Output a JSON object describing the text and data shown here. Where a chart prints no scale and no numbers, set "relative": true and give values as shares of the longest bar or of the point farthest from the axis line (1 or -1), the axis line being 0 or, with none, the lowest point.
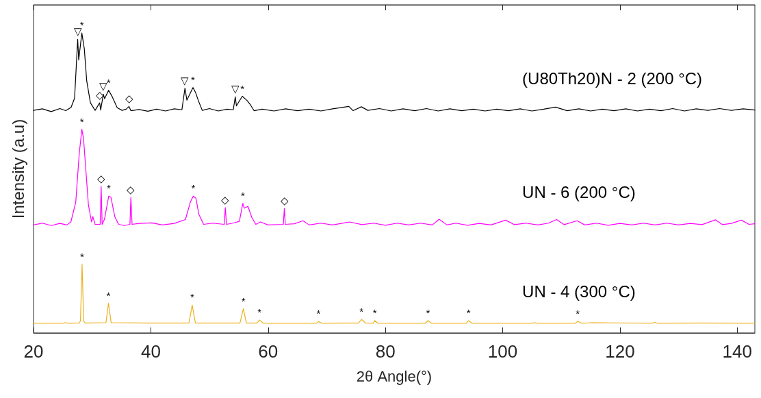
{
  "chart_data": {
    "type": "line",
    "relative": true,
    "xlabel": "2θ Angle(°)",
    "ylabel": "Intensity (a.u)",
    "xlim": [
      20,
      143
    ],
    "xticks": [
      20,
      40,
      60,
      80,
      100,
      120,
      140
    ],
    "series": [
      {
        "name": "(U80Th20)N - 2 (200 °C)",
        "color": "#000000",
        "x": [
          20,
          21.5,
          23,
          24.5,
          25.5,
          26.4,
          27.0,
          27.53,
          27.7,
          28.24,
          28.66,
          29.07,
          29.7,
          30.5,
          31.28,
          31.45,
          31.9,
          32.12,
          32.8,
          33.43,
          34.27,
          35.1,
          35.8,
          36.28,
          36.6,
          38,
          39.5,
          41,
          42.5,
          44,
          45.3,
          45.82,
          46.15,
          47.19,
          47.6,
          48.1,
          48.77,
          50,
          51.5,
          53,
          54.06,
          54.4,
          54.6,
          55.6,
          56.4,
          57.0,
          57.6,
          59,
          61,
          63,
          65,
          67,
          69,
          71,
          73.77,
          74.5,
          75.9,
          77,
          79,
          81,
          83,
          85,
          87,
          89,
          91,
          93,
          95,
          97,
          99,
          101,
          103,
          105,
          107,
          109,
          111,
          113,
          115,
          117,
          119,
          121,
          123,
          125,
          127,
          129,
          131,
          133,
          135,
          137,
          139,
          141,
          143
        ],
        "values": [
          0.742,
          0.747,
          0.738,
          0.748,
          0.741,
          0.752,
          0.783,
          0.979,
          0.91,
          1.0,
          0.947,
          0.84,
          0.767,
          0.742,
          0.767,
          0.743,
          0.796,
          0.781,
          0.809,
          0.787,
          0.751,
          0.742,
          0.746,
          0.755,
          0.741,
          0.745,
          0.739,
          0.746,
          0.74,
          0.747,
          0.744,
          0.816,
          0.776,
          0.818,
          0.803,
          0.775,
          0.742,
          0.748,
          0.74,
          0.746,
          0.744,
          0.787,
          0.757,
          0.789,
          0.775,
          0.76,
          0.741,
          0.746,
          0.74,
          0.747,
          0.741,
          0.746,
          0.74,
          0.747,
          0.755,
          0.741,
          0.754,
          0.742,
          0.748,
          0.74,
          0.747,
          0.741,
          0.748,
          0.74,
          0.747,
          0.741,
          0.746,
          0.74,
          0.746,
          0.741,
          0.747,
          0.74,
          0.746,
          0.753,
          0.741,
          0.747,
          0.74,
          0.746,
          0.741,
          0.747,
          0.74,
          0.746,
          0.741,
          0.748,
          0.74,
          0.747,
          0.742,
          0.748,
          0.742,
          0.747,
          0.743
        ]
      },
      {
        "name": "UN - 6 (200 °C)",
        "color": "#ff00ff",
        "x": [
          20,
          21.5,
          23,
          24.5,
          25.7,
          26.37,
          27.2,
          27.8,
          28.24,
          28.53,
          28.86,
          29.36,
          29.9,
          30.11,
          30.5,
          31.36,
          31.53,
          31.7,
          32.1,
          32.82,
          33.2,
          33.87,
          34.5,
          35.5,
          36.44,
          36.6,
          36.8,
          38,
          40.2,
          42,
          44,
          45.9,
          46.74,
          47.24,
          47.69,
          48.2,
          49.0,
          50.5,
          52.53,
          52.7,
          52.9,
          54,
          55.1,
          55.69,
          55.93,
          56.56,
          57.2,
          57.9,
          58.7,
          60,
          62.6,
          62.77,
          62.93,
          64.5,
          65.94,
          67,
          69,
          71,
          73.9,
          76,
          78,
          80,
          82,
          84,
          86,
          88,
          89.16,
          90.5,
          92,
          94,
          96,
          98,
          100.5,
          102,
          104,
          106,
          107.8,
          109.2,
          110.5,
          112.7,
          114,
          116,
          118,
          120,
          122,
          124,
          126,
          128,
          130,
          132,
          134,
          136.3,
          137.5,
          139,
          140.7,
          142,
          143
        ],
        "values": [
          0.36,
          0.366,
          0.358,
          0.365,
          0.36,
          0.37,
          0.436,
          0.599,
          0.679,
          0.648,
          0.559,
          0.427,
          0.37,
          0.388,
          0.362,
          0.362,
          0.489,
          0.362,
          0.379,
          0.456,
          0.452,
          0.387,
          0.362,
          0.358,
          0.362,
          0.452,
          0.362,
          0.365,
          0.367,
          0.36,
          0.365,
          0.378,
          0.436,
          0.456,
          0.449,
          0.395,
          0.362,
          0.366,
          0.362,
          0.418,
          0.362,
          0.366,
          0.372,
          0.432,
          0.416,
          0.422,
          0.386,
          0.362,
          0.37,
          0.36,
          0.362,
          0.415,
          0.362,
          0.364,
          0.374,
          0.36,
          0.366,
          0.36,
          0.37,
          0.361,
          0.366,
          0.359,
          0.366,
          0.36,
          0.366,
          0.36,
          0.379,
          0.36,
          0.366,
          0.359,
          0.365,
          0.36,
          0.376,
          0.361,
          0.366,
          0.36,
          0.366,
          0.378,
          0.361,
          0.374,
          0.36,
          0.366,
          0.359,
          0.365,
          0.36,
          0.366,
          0.36,
          0.366,
          0.36,
          0.365,
          0.361,
          0.377,
          0.361,
          0.365,
          0.376,
          0.362,
          0.364
        ]
      },
      {
        "name": "UN - 4 (300 °C)",
        "color": "#edb120",
        "x": [
          20,
          25,
          25.4,
          25.8,
          27.8,
          28.0,
          28.28,
          28.55,
          28.8,
          32.35,
          32.78,
          33.24,
          40,
          46.5,
          47.06,
          47.6,
          55.2,
          55.78,
          56.3,
          58.1,
          58.52,
          59.2,
          68.2,
          68.6,
          69.2,
          75.4,
          75.93,
          76.6,
          77.9,
          78.2,
          78.7,
          86.8,
          87.27,
          87.9,
          93.8,
          94.18,
          94.8,
          105,
          105.4,
          106,
          112.4,
          112.8,
          113.5,
          115.3,
          125.5,
          125.9,
          126.4,
          135,
          143
        ],
        "values": [
          0.032,
          0.032,
          0.034,
          0.032,
          0.033,
          0.04,
          0.229,
          0.04,
          0.033,
          0.034,
          0.099,
          0.034,
          0.033,
          0.033,
          0.093,
          0.033,
          0.033,
          0.081,
          0.033,
          0.033,
          0.043,
          0.032,
          0.032,
          0.038,
          0.032,
          0.033,
          0.045,
          0.033,
          0.032,
          0.041,
          0.032,
          0.032,
          0.041,
          0.032,
          0.032,
          0.041,
          0.032,
          0.032,
          0.034,
          0.032,
          0.032,
          0.039,
          0.032,
          0.034,
          0.032,
          0.036,
          0.032,
          0.033,
          0.032
        ]
      }
    ],
    "annotations": [
      {
        "text": "▽",
        "x": 27.53,
        "y": 0.979
      },
      {
        "text": "*",
        "x": 28.24,
        "y": 1.0
      },
      {
        "text": "◇",
        "x": 31.28,
        "y": 0.767
      },
      {
        "text": "▽",
        "x": 31.9,
        "y": 0.796
      },
      {
        "text": "*",
        "x": 32.8,
        "y": 0.809
      },
      {
        "text": "◇",
        "x": 36.28,
        "y": 0.755
      },
      {
        "text": "▽",
        "x": 45.82,
        "y": 0.816
      },
      {
        "text": "*",
        "x": 47.19,
        "y": 0.818
      },
      {
        "text": "▽",
        "x": 54.4,
        "y": 0.787
      },
      {
        "text": "*",
        "x": 55.6,
        "y": 0.789
      },
      {
        "text": "*",
        "x": 28.24,
        "y": 0.679
      },
      {
        "text": "◇",
        "x": 31.53,
        "y": 0.489
      },
      {
        "text": "*",
        "x": 32.82,
        "y": 0.456
      },
      {
        "text": "◇",
        "x": 36.6,
        "y": 0.452
      },
      {
        "text": "*",
        "x": 47.24,
        "y": 0.456
      },
      {
        "text": "◇",
        "x": 52.7,
        "y": 0.418
      },
      {
        "text": "*",
        "x": 55.69,
        "y": 0.432
      },
      {
        "text": "◇",
        "x": 62.77,
        "y": 0.415
      },
      {
        "text": "*",
        "x": 28.28,
        "y": 0.229
      },
      {
        "text": "*",
        "x": 32.78,
        "y": 0.099
      },
      {
        "text": "*",
        "x": 47.06,
        "y": 0.093
      },
      {
        "text": "*",
        "x": 55.78,
        "y": 0.081
      },
      {
        "text": "*",
        "x": 58.52,
        "y": 0.043
      },
      {
        "text": "*",
        "x": 68.6,
        "y": 0.038
      },
      {
        "text": "*",
        "x": 75.93,
        "y": 0.045
      },
      {
        "text": "*",
        "x": 78.2,
        "y": 0.041
      },
      {
        "text": "*",
        "x": 87.27,
        "y": 0.041
      },
      {
        "text": "*",
        "x": 94.18,
        "y": 0.041
      },
      {
        "text": "*",
        "x": 112.8,
        "y": 0.039
      }
    ]
  }
}
